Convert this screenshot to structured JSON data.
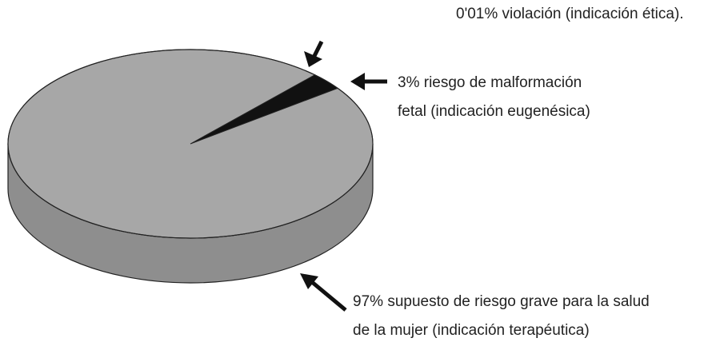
{
  "chart_data": {
    "type": "pie",
    "value_labels": [
      "0'01%",
      "3%",
      "97%"
    ],
    "categories": [
      "violación (indicación ética).",
      "riesgo de malformación\nfetal (indicación eugenésica)",
      "supuesto de riesgo grave para la salud\nde la mujer (indicación terapéutica)"
    ],
    "values": [
      0.01,
      3,
      97
    ],
    "colors": [
      "#111111",
      "#111111",
      "#a7a7a7"
    ]
  }
}
